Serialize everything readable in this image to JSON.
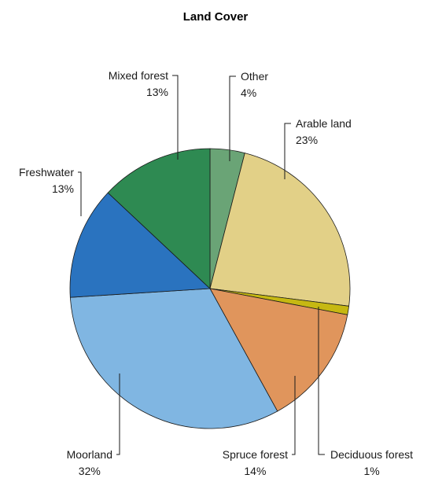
{
  "chart_data": {
    "type": "pie",
    "title": "Land Cover",
    "slices": [
      {
        "label": "Other",
        "value": 4,
        "value_label": "4%",
        "color": "#6aa476"
      },
      {
        "label": "Arable land",
        "value": 23,
        "value_label": "23%",
        "color": "#e2d087"
      },
      {
        "label": "Deciduous forest",
        "value": 1,
        "value_label": "1%",
        "color": "#c6b812"
      },
      {
        "label": "Spruce forest",
        "value": 14,
        "value_label": "14%",
        "color": "#e0955c"
      },
      {
        "label": "Moorland",
        "value": 32,
        "value_label": "32%",
        "color": "#80b6e2"
      },
      {
        "label": "Freshwater",
        "value": 13,
        "value_label": "13%",
        "color": "#2a73bf"
      },
      {
        "label": "Mixed forest",
        "value": 13,
        "value_label": "13%",
        "color": "#2e8a52"
      }
    ],
    "start_angle_deg": 0,
    "direction": "clockwise",
    "legend": "none"
  }
}
